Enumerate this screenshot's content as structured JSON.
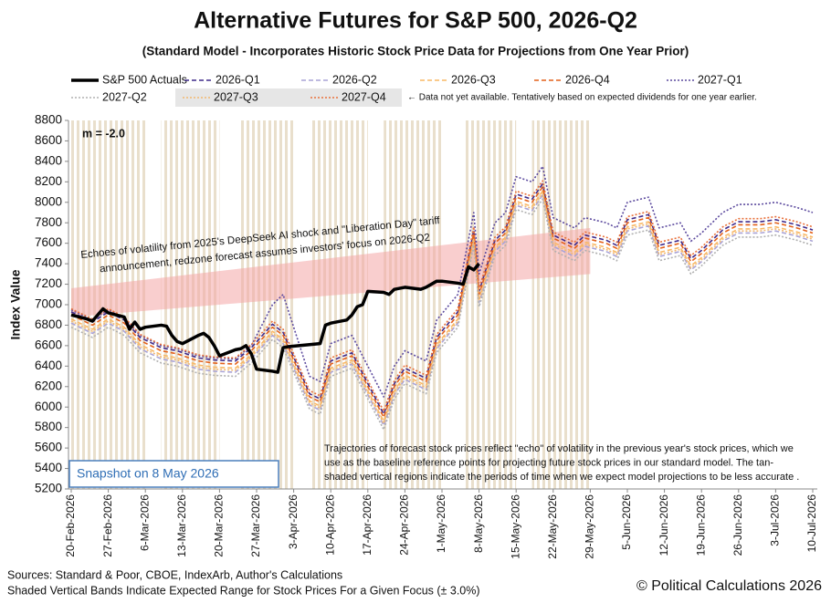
{
  "chart_data": {
    "type": "line",
    "title": "Alternative Futures for S&P 500, 2026-Q2",
    "subtitle": "(Standard Model - Incorporates Historic Stock Price Data for Projections from One Year Prior)",
    "y_label": "Index Value",
    "ylim": [
      5200,
      8800
    ],
    "yticks": [
      5200,
      5400,
      5600,
      5800,
      6000,
      6200,
      6400,
      6600,
      6800,
      7000,
      7200,
      7400,
      7600,
      7800,
      8000,
      8200,
      8400,
      8600,
      8800
    ],
    "xlim": [
      "20-Feb-2026",
      "10-Jul-2026"
    ],
    "xticks": [
      "20-Feb-2026",
      "27-Feb-2026",
      "6-Mar-2026",
      "13-Mar-2026",
      "20-Mar-2026",
      "27-Mar-2026",
      "3-Apr-2026",
      "10-Apr-2026",
      "17-Apr-2026",
      "24-Apr-2026",
      "1-May-2026",
      "8-May-2026",
      "15-May-2026",
      "22-May-2026",
      "29-May-2026",
      "5-Jun-2026",
      "12-Jun-2026",
      "19-Jun-2026",
      "26-Jun-2026",
      "3-Jul-2026",
      "10-Jul-2026"
    ],
    "grid": false,
    "x": [
      "20-Feb-2026",
      "24-Feb-2026",
      "27-Feb-2026",
      "2-Mar-2026",
      "5-Mar-2026",
      "9-Mar-2026",
      "12-Mar-2026",
      "16-Mar-2026",
      "19-Mar-2026",
      "23-Mar-2026",
      "26-Mar-2026",
      "30-Mar-2026",
      "1-Apr-2026",
      "6-Apr-2026",
      "8-Apr-2026",
      "10-Apr-2026",
      "14-Apr-2026",
      "16-Apr-2026",
      "20-Apr-2026",
      "22-Apr-2026",
      "24-Apr-2026",
      "28-Apr-2026",
      "30-Apr-2026",
      "4-May-2026",
      "7-May-2026",
      "8-May-2026",
      "11-May-2026",
      "13-May-2026",
      "15-May-2026",
      "18-May-2026",
      "20-May-2026",
      "22-May-2026",
      "26-May-2026",
      "28-May-2026",
      "1-Jun-2026",
      "3-Jun-2026",
      "5-Jun-2026",
      "9-Jun-2026",
      "11-Jun-2026",
      "15-Jun-2026",
      "17-Jun-2026",
      "19-Jun-2026",
      "23-Jun-2026",
      "26-Jun-2026",
      "30-Jun-2026",
      "3-Jul-2026",
      "7-Jul-2026",
      "10-Jul-2026"
    ],
    "series": [
      {
        "name": "S&P 500 Actuals",
        "color": "#000000",
        "style": "solid",
        "x": [
          "20-Feb-2026",
          "23-Feb-2026",
          "24-Feb-2026",
          "25-Feb-2026",
          "26-Feb-2026",
          "27-Feb-2026",
          "2-Mar-2026",
          "3-Mar-2026",
          "4-Mar-2026",
          "5-Mar-2026",
          "6-Mar-2026",
          "9-Mar-2026",
          "10-Mar-2026",
          "11-Mar-2026",
          "12-Mar-2026",
          "13-Mar-2026",
          "16-Mar-2026",
          "17-Mar-2026",
          "18-Mar-2026",
          "19-Mar-2026",
          "20-Mar-2026",
          "23-Mar-2026",
          "24-Mar-2026",
          "25-Mar-2026",
          "26-Mar-2026",
          "27-Mar-2026",
          "30-Mar-2026",
          "31-Mar-2026",
          "1-Apr-2026",
          "2-Apr-2026",
          "6-Apr-2026",
          "8-Apr-2026",
          "9-Apr-2026",
          "10-Apr-2026",
          "13-Apr-2026",
          "14-Apr-2026",
          "15-Apr-2026",
          "16-Apr-2026",
          "17-Apr-2026",
          "20-Apr-2026",
          "21-Apr-2026",
          "22-Apr-2026",
          "23-Apr-2026",
          "24-Apr-2026",
          "27-Apr-2026",
          "28-Apr-2026",
          "29-Apr-2026",
          "30-Apr-2026",
          "1-May-2026",
          "4-May-2026",
          "5-May-2026",
          "6-May-2026",
          "7-May-2026",
          "8-May-2026"
        ],
        "values": [
          6900,
          6860,
          6840,
          6900,
          6960,
          6920,
          6880,
          6760,
          6830,
          6760,
          6780,
          6800,
          6790,
          6700,
          6640,
          6620,
          6700,
          6720,
          6680,
          6600,
          6500,
          6560,
          6570,
          6600,
          6520,
          6370,
          6350,
          6340,
          6580,
          6590,
          6610,
          6620,
          6800,
          6820,
          6850,
          6900,
          6980,
          7000,
          7130,
          7120,
          7100,
          7150,
          7160,
          7170,
          7150,
          7170,
          7200,
          7230,
          7230,
          7210,
          7200,
          7370,
          7340,
          7400
        ]
      },
      {
        "name": "2026-Q1",
        "color": "#3f2a8a",
        "style": "dashed",
        "values": [
          6930,
          6830,
          6930,
          6850,
          6680,
          6580,
          6550,
          6480,
          6460,
          6450,
          6580,
          6810,
          6730,
          6130,
          6080,
          6450,
          6530,
          6330,
          5930,
          6230,
          6380,
          6280,
          6680,
          6930,
          7730,
          7130,
          7630,
          7730,
          8080,
          8030,
          8180,
          7680,
          7580,
          7680,
          7630,
          7580,
          7830,
          7880,
          7580,
          7630,
          7450,
          7530,
          7730,
          7810,
          7810,
          7830,
          7780,
          7730
        ]
      },
      {
        "name": "2026-Q2",
        "color": "#a9a3d6",
        "style": "dashed",
        "values": [
          6820,
          6720,
          6820,
          6740,
          6570,
          6470,
          6440,
          6370,
          6350,
          6340,
          6470,
          6700,
          6620,
          6020,
          5970,
          6340,
          6420,
          6220,
          5820,
          6120,
          6270,
          6170,
          6570,
          6820,
          7620,
          7020,
          7520,
          7620,
          7970,
          7920,
          8070,
          7570,
          7470,
          7570,
          7520,
          7470,
          7720,
          7770,
          7470,
          7520,
          7340,
          7420,
          7620,
          7700,
          7700,
          7720,
          7670,
          7620
        ]
      },
      {
        "name": "2026-Q3",
        "color": "#f9b865",
        "style": "dashed",
        "values": [
          6860,
          6760,
          6860,
          6780,
          6610,
          6510,
          6480,
          6410,
          6390,
          6380,
          6510,
          6740,
          6660,
          6060,
          6010,
          6380,
          6460,
          6260,
          5860,
          6160,
          6310,
          6210,
          6610,
          6860,
          7660,
          7060,
          7560,
          7660,
          8010,
          7960,
          8110,
          7610,
          7510,
          7610,
          7560,
          7510,
          7760,
          7810,
          7510,
          7560,
          7380,
          7460,
          7660,
          7740,
          7740,
          7760,
          7710,
          7660
        ]
      },
      {
        "name": "2026-Q4",
        "color": "#e3601a",
        "style": "dashed",
        "values": [
          6900,
          6800,
          6900,
          6820,
          6650,
          6550,
          6520,
          6450,
          6430,
          6420,
          6550,
          6780,
          6700,
          6100,
          6050,
          6420,
          6500,
          6300,
          5900,
          6200,
          6350,
          6250,
          6650,
          6900,
          7700,
          7100,
          7600,
          7700,
          8050,
          8000,
          8150,
          7650,
          7550,
          7650,
          7600,
          7550,
          7800,
          7850,
          7550,
          7600,
          7420,
          7500,
          7700,
          7780,
          7780,
          7800,
          7750,
          7700
        ]
      },
      {
        "name": "2027-Q1",
        "color": "#5c4a9e",
        "style": "dotted",
        "values": [
          6950,
          6850,
          6950,
          6870,
          6700,
          6600,
          6570,
          6500,
          6480,
          6470,
          6600,
          7000,
          7100,
          6300,
          6250,
          6620,
          6700,
          6500,
          6100,
          6400,
          6550,
          6450,
          6850,
          7100,
          7900,
          7300,
          7800,
          7900,
          8250,
          8200,
          8350,
          7850,
          7750,
          7850,
          7800,
          7750,
          8000,
          8050,
          7750,
          7800,
          7620,
          7700,
          7900,
          7980,
          7980,
          8000,
          7950,
          7900
        ]
      },
      {
        "name": "2027-Q2",
        "color": "#b0b0b0",
        "style": "dotted",
        "values": [
          6780,
          6680,
          6780,
          6700,
          6530,
          6430,
          6400,
          6330,
          6310,
          6300,
          6430,
          6660,
          6580,
          5980,
          5930,
          6300,
          6380,
          6180,
          5780,
          6080,
          6230,
          6130,
          6530,
          6780,
          7580,
          6980,
          7480,
          7580,
          7930,
          7880,
          8030,
          7530,
          7430,
          7530,
          7480,
          7430,
          7680,
          7730,
          7430,
          7480,
          7300,
          7380,
          7580,
          7660,
          7660,
          7680,
          7630,
          7580
        ]
      },
      {
        "name": "2027-Q3",
        "color": "#f2b870",
        "style": "dotted",
        "values": [
          6840,
          6740,
          6840,
          6760,
          6590,
          6490,
          6460,
          6390,
          6370,
          6360,
          6490,
          6720,
          6640,
          6040,
          5990,
          6360,
          6440,
          6240,
          5840,
          6140,
          6290,
          6190,
          6590,
          6840,
          7640,
          7040,
          7540,
          7640,
          7990,
          7940,
          8090,
          7590,
          7490,
          7590,
          7540,
          7490,
          7740,
          7790,
          7490,
          7540,
          7360,
          7440,
          7640,
          7720,
          7720,
          7740,
          7690,
          7640
        ]
      },
      {
        "name": "2027-Q4",
        "color": "#e8703a",
        "style": "dotted",
        "values": [
          6960,
          6860,
          6960,
          6880,
          6710,
          6610,
          6580,
          6510,
          6490,
          6480,
          6610,
          6840,
          6760,
          6160,
          6110,
          6480,
          6560,
          6360,
          5960,
          6260,
          6410,
          6310,
          6710,
          6960,
          7760,
          7160,
          7660,
          7760,
          8110,
          8060,
          8210,
          7710,
          7610,
          7710,
          7660,
          7610,
          7860,
          7910,
          7610,
          7660,
          7480,
          7560,
          7760,
          7840,
          7840,
          7860,
          7810,
          7760
        ]
      }
    ],
    "legend_note": "← Data not yet available.  Tentatively based on expected dividends for one year earlier.",
    "redzone": {
      "color": "#f4a6a6",
      "x": [
        "20-Feb-2026",
        "29-May-2026"
      ],
      "lower": [
        6880,
        7300
      ],
      "upper": [
        7160,
        7750
      ]
    },
    "tan_bands": {
      "color": "#e9dfcc",
      "ranges": [
        [
          "20-Feb-2026",
          "6-Mar-2026"
        ],
        [
          "9-Mar-2026",
          "20-Mar-2026"
        ],
        [
          "24-Mar-2026",
          "3-Apr-2026"
        ],
        [
          "6-Apr-2026",
          "17-Apr-2026"
        ],
        [
          "20-Apr-2026",
          "1-May-2026"
        ],
        [
          "5-May-2026",
          "15-May-2026"
        ],
        [
          "18-May-2026",
          "29-May-2026"
        ]
      ]
    },
    "annotations": [
      "m = -2.0",
      "Echoes of volatility from 2025's DeepSeek AI shock and \"Liberation Day\" tariff",
      "announcement, redzone forecast assumes investors' focus on 2026-Q2",
      "Trajectories of forecast stock prices reflect \"echo\" of volatility in  the previous year's stock prices, which we",
      "use as the baseline reference points for projecting future stock prices in our standard model.   The tan-",
      "shaded vertical regions indicate the periods of time when we expect model projections to be less accurate .",
      "Snapshot on 8 May 2026"
    ],
    "sources": "Sources: Standard & Poor, CBOE, IndexArb, Author's Calculations",
    "footnote": "Shaded Vertical Bands Indicate Expected Range for Stock Prices For a Given Focus (± 3.0%)",
    "copyright": "© Political Calculations 2026"
  }
}
